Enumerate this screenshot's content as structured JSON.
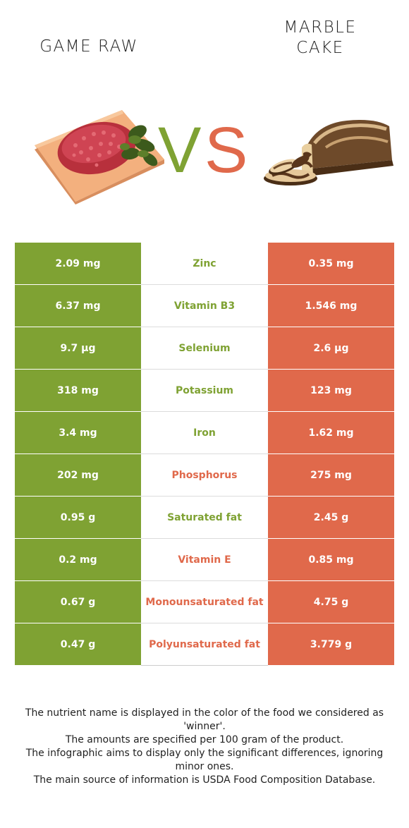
{
  "left_food": {
    "title": "GAME RAW",
    "image_icon": "raw-meat-on-board"
  },
  "right_food": {
    "title_line1": "MARBLE",
    "title_line2": "CAKE",
    "image_icon": "marble-cake-slices"
  },
  "vs": {
    "v": "V",
    "s": "S"
  },
  "colors": {
    "left": "#7fa233",
    "right": "#e0694b"
  },
  "rows": [
    {
      "nutrient": "Zinc",
      "left": "2.09 mg",
      "right": "0.35 mg",
      "winner": "left"
    },
    {
      "nutrient": "Vitamin B3",
      "left": "6.37 mg",
      "right": "1.546 mg",
      "winner": "left"
    },
    {
      "nutrient": "Selenium",
      "left": "9.7 µg",
      "right": "2.6 µg",
      "winner": "left"
    },
    {
      "nutrient": "Potassium",
      "left": "318 mg",
      "right": "123 mg",
      "winner": "left"
    },
    {
      "nutrient": "Iron",
      "left": "3.4 mg",
      "right": "1.62 mg",
      "winner": "left"
    },
    {
      "nutrient": "Phosphorus",
      "left": "202 mg",
      "right": "275 mg",
      "winner": "right"
    },
    {
      "nutrient": "Saturated fat",
      "left": "0.95 g",
      "right": "2.45 g",
      "winner": "left"
    },
    {
      "nutrient": "Vitamin E",
      "left": "0.2 mg",
      "right": "0.85 mg",
      "winner": "right"
    },
    {
      "nutrient": "Monounsaturated fat",
      "left": "0.67 g",
      "right": "4.75 g",
      "winner": "right"
    },
    {
      "nutrient": "Polyunsaturated fat",
      "left": "0.47 g",
      "right": "3.779 g",
      "winner": "right"
    }
  ],
  "footer": [
    "The nutrient name is displayed in the color of the food we considered as 'winner'.",
    "The amounts are specified per 100 gram of the product.",
    "The infographic aims to display only the significant differences, ignoring minor ones.",
    "The main source of information is USDA Food Composition Database."
  ]
}
